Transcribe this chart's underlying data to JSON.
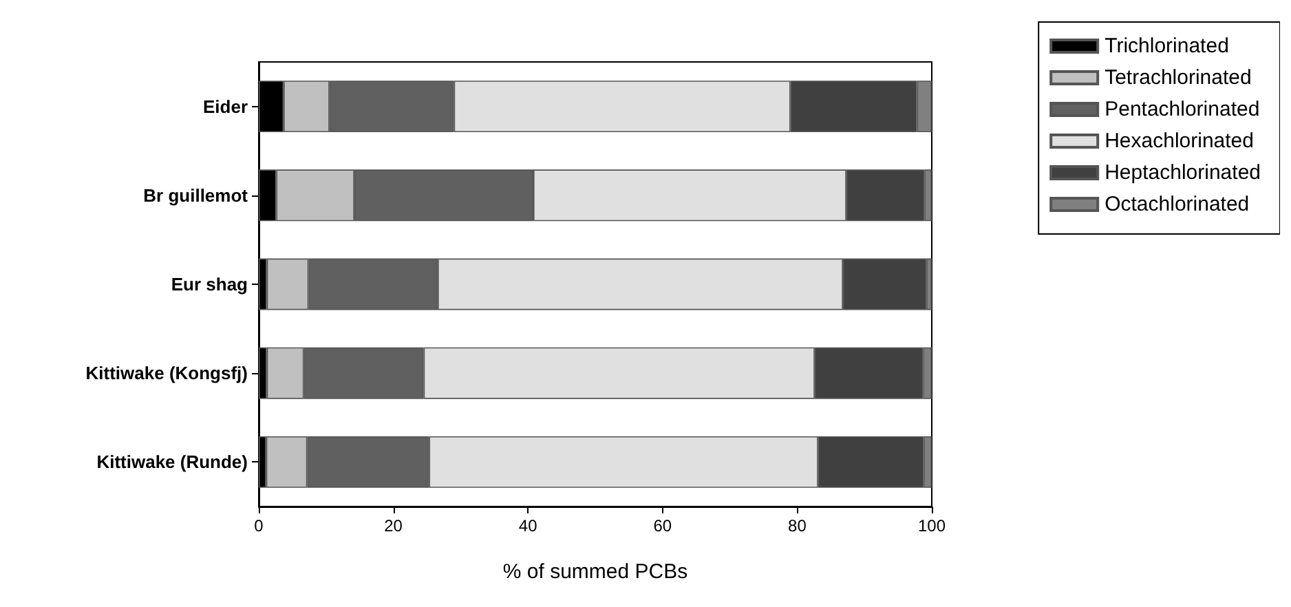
{
  "chart_data": {
    "type": "bar",
    "orientation": "horizontal",
    "stacked": true,
    "xlabel": "% of summed PCBs",
    "categories": [
      "Eider",
      "Br guillemot",
      "Eur shag",
      "Kittiwake (Kongsfj)",
      "Kittiwake (Runde)"
    ],
    "series": [
      {
        "name": "Trichlorinated",
        "color": "#000000",
        "values": [
          3.7,
          2.6,
          1.2,
          1.2,
          1.1
        ]
      },
      {
        "name": "Tetrachlorinated",
        "color": "#c0c0c0",
        "values": [
          6.8,
          11.6,
          6.2,
          5.5,
          6.1
        ]
      },
      {
        "name": "Pentachlorinated",
        "color": "#606060",
        "values": [
          18.5,
          26.6,
          19.2,
          17.8,
          18.1
        ]
      },
      {
        "name": "Hexachlorinated",
        "color": "#e0e0e0",
        "values": [
          50,
          46.5,
          60.2,
          58.1,
          57.8
        ]
      },
      {
        "name": "Heptachlorinated",
        "color": "#404040",
        "values": [
          18.8,
          11.6,
          12.4,
          16.1,
          15.7
        ]
      },
      {
        "name": "Octachlorinated",
        "color": "#808080",
        "values": [
          2.2,
          1.1,
          0.8,
          1.3,
          1.2
        ]
      }
    ],
    "xlim": [
      0,
      100
    ],
    "xticks": [
      0,
      20,
      40,
      60,
      80,
      100
    ],
    "grid": false,
    "legend": "top right"
  }
}
